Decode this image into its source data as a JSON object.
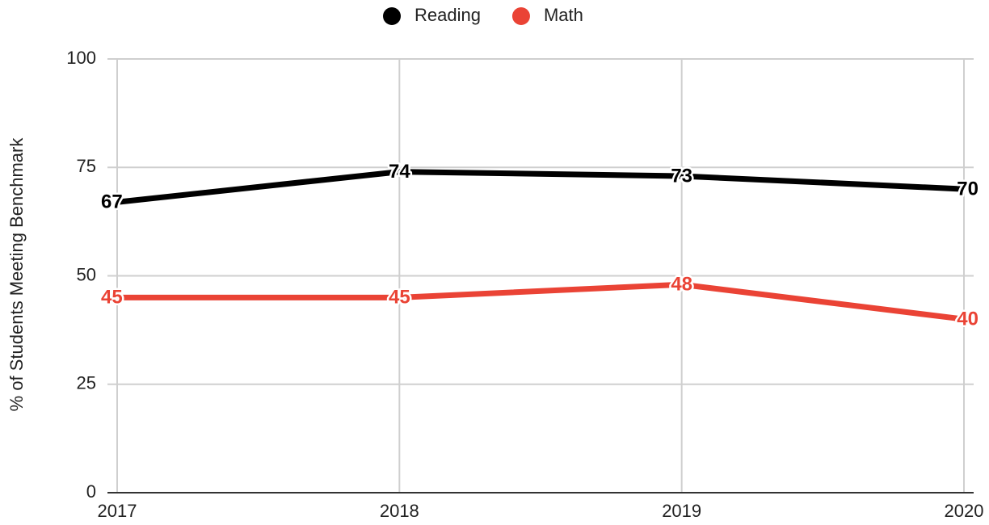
{
  "chart_data": {
    "type": "line",
    "y_label": "% of Students Meeting Benchmark",
    "categories": [
      "2017",
      "2018",
      "2019",
      "2020"
    ],
    "series": [
      {
        "name": "Reading",
        "color": "#000000",
        "values": [
          67,
          74,
          73,
          70
        ]
      },
      {
        "name": "Math",
        "color": "#ea4335",
        "values": [
          45,
          45,
          48,
          40
        ]
      }
    ],
    "ylim": [
      0,
      100
    ],
    "yticks": [
      0,
      25,
      50,
      75,
      100
    ],
    "grid": true,
    "legend": "top"
  }
}
